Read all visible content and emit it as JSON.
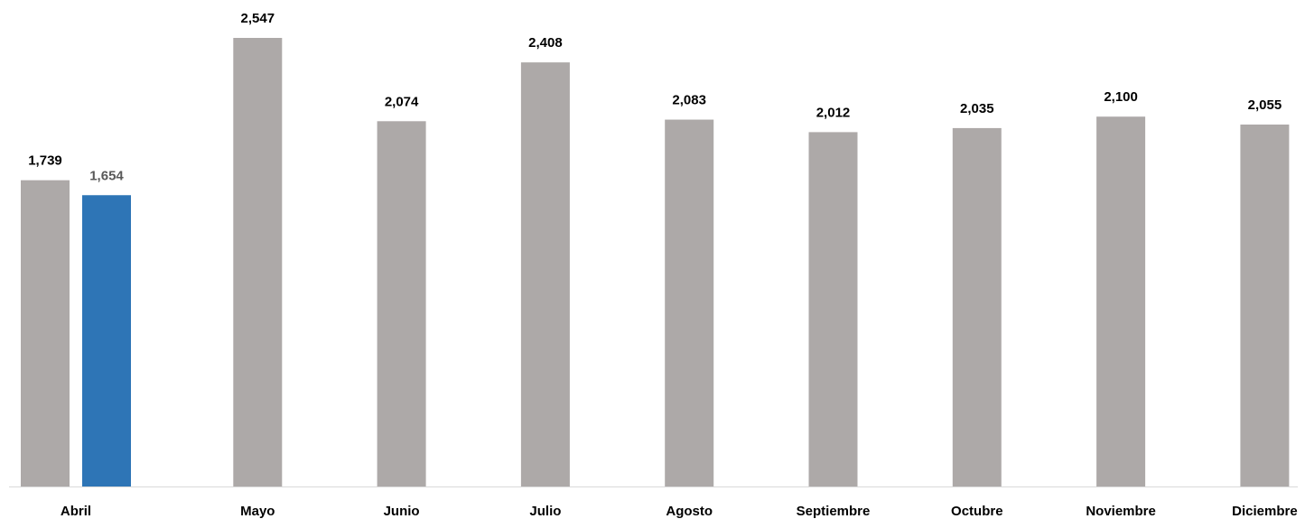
{
  "chart_data": {
    "type": "bar",
    "categories": [
      "Abril",
      "Mayo",
      "Junio",
      "Julio",
      "Agosto",
      "Septiembre",
      "Octubre",
      "Noviembre",
      "Diciembre"
    ],
    "series": [
      {
        "values": [
          1739,
          2547,
          2074,
          2408,
          2083,
          2012,
          2035,
          2100,
          2055
        ],
        "labels": [
          "1,739",
          "2,547",
          "2,074",
          "2,408",
          "2,083",
          "2,012",
          "2,035",
          "2,100",
          "2,055"
        ],
        "color": "#ADA9A8"
      },
      {
        "values": [
          1654,
          null,
          null,
          null,
          null,
          null,
          null,
          null,
          null
        ],
        "labels": [
          "1,654",
          "",
          "",
          "",
          "",
          "",
          "",
          "",
          ""
        ],
        "color": "#2E75B6",
        "label_color": "#595959"
      }
    ],
    "ylim": [
      0,
      2547
    ],
    "grid": false,
    "legend": "none",
    "axis_color": "#D9D9D9"
  }
}
